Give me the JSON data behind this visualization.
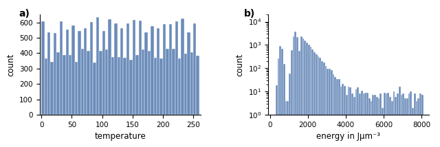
{
  "bar_color": "#6b8cba",
  "subplot_a": {
    "label": "a)",
    "xlabel": "temperature",
    "ylabel": "count",
    "xlim": [
      -3,
      262
    ],
    "ylim": [
      0,
      650
    ],
    "yticks": [
      0,
      100,
      200,
      300,
      400,
      500,
      600
    ],
    "xticks": [
      0,
      50,
      100,
      150,
      200,
      250
    ],
    "temp_min": 0,
    "temp_max": 260
  },
  "subplot_b": {
    "label": "b)",
    "xlabel": "energy in Jμm⁻³",
    "ylabel": "count",
    "xlim": [
      -100,
      8400
    ],
    "ylim_log": [
      1.0,
      20000.0
    ],
    "xticks": [
      0,
      2000,
      4000,
      6000,
      8000
    ]
  }
}
